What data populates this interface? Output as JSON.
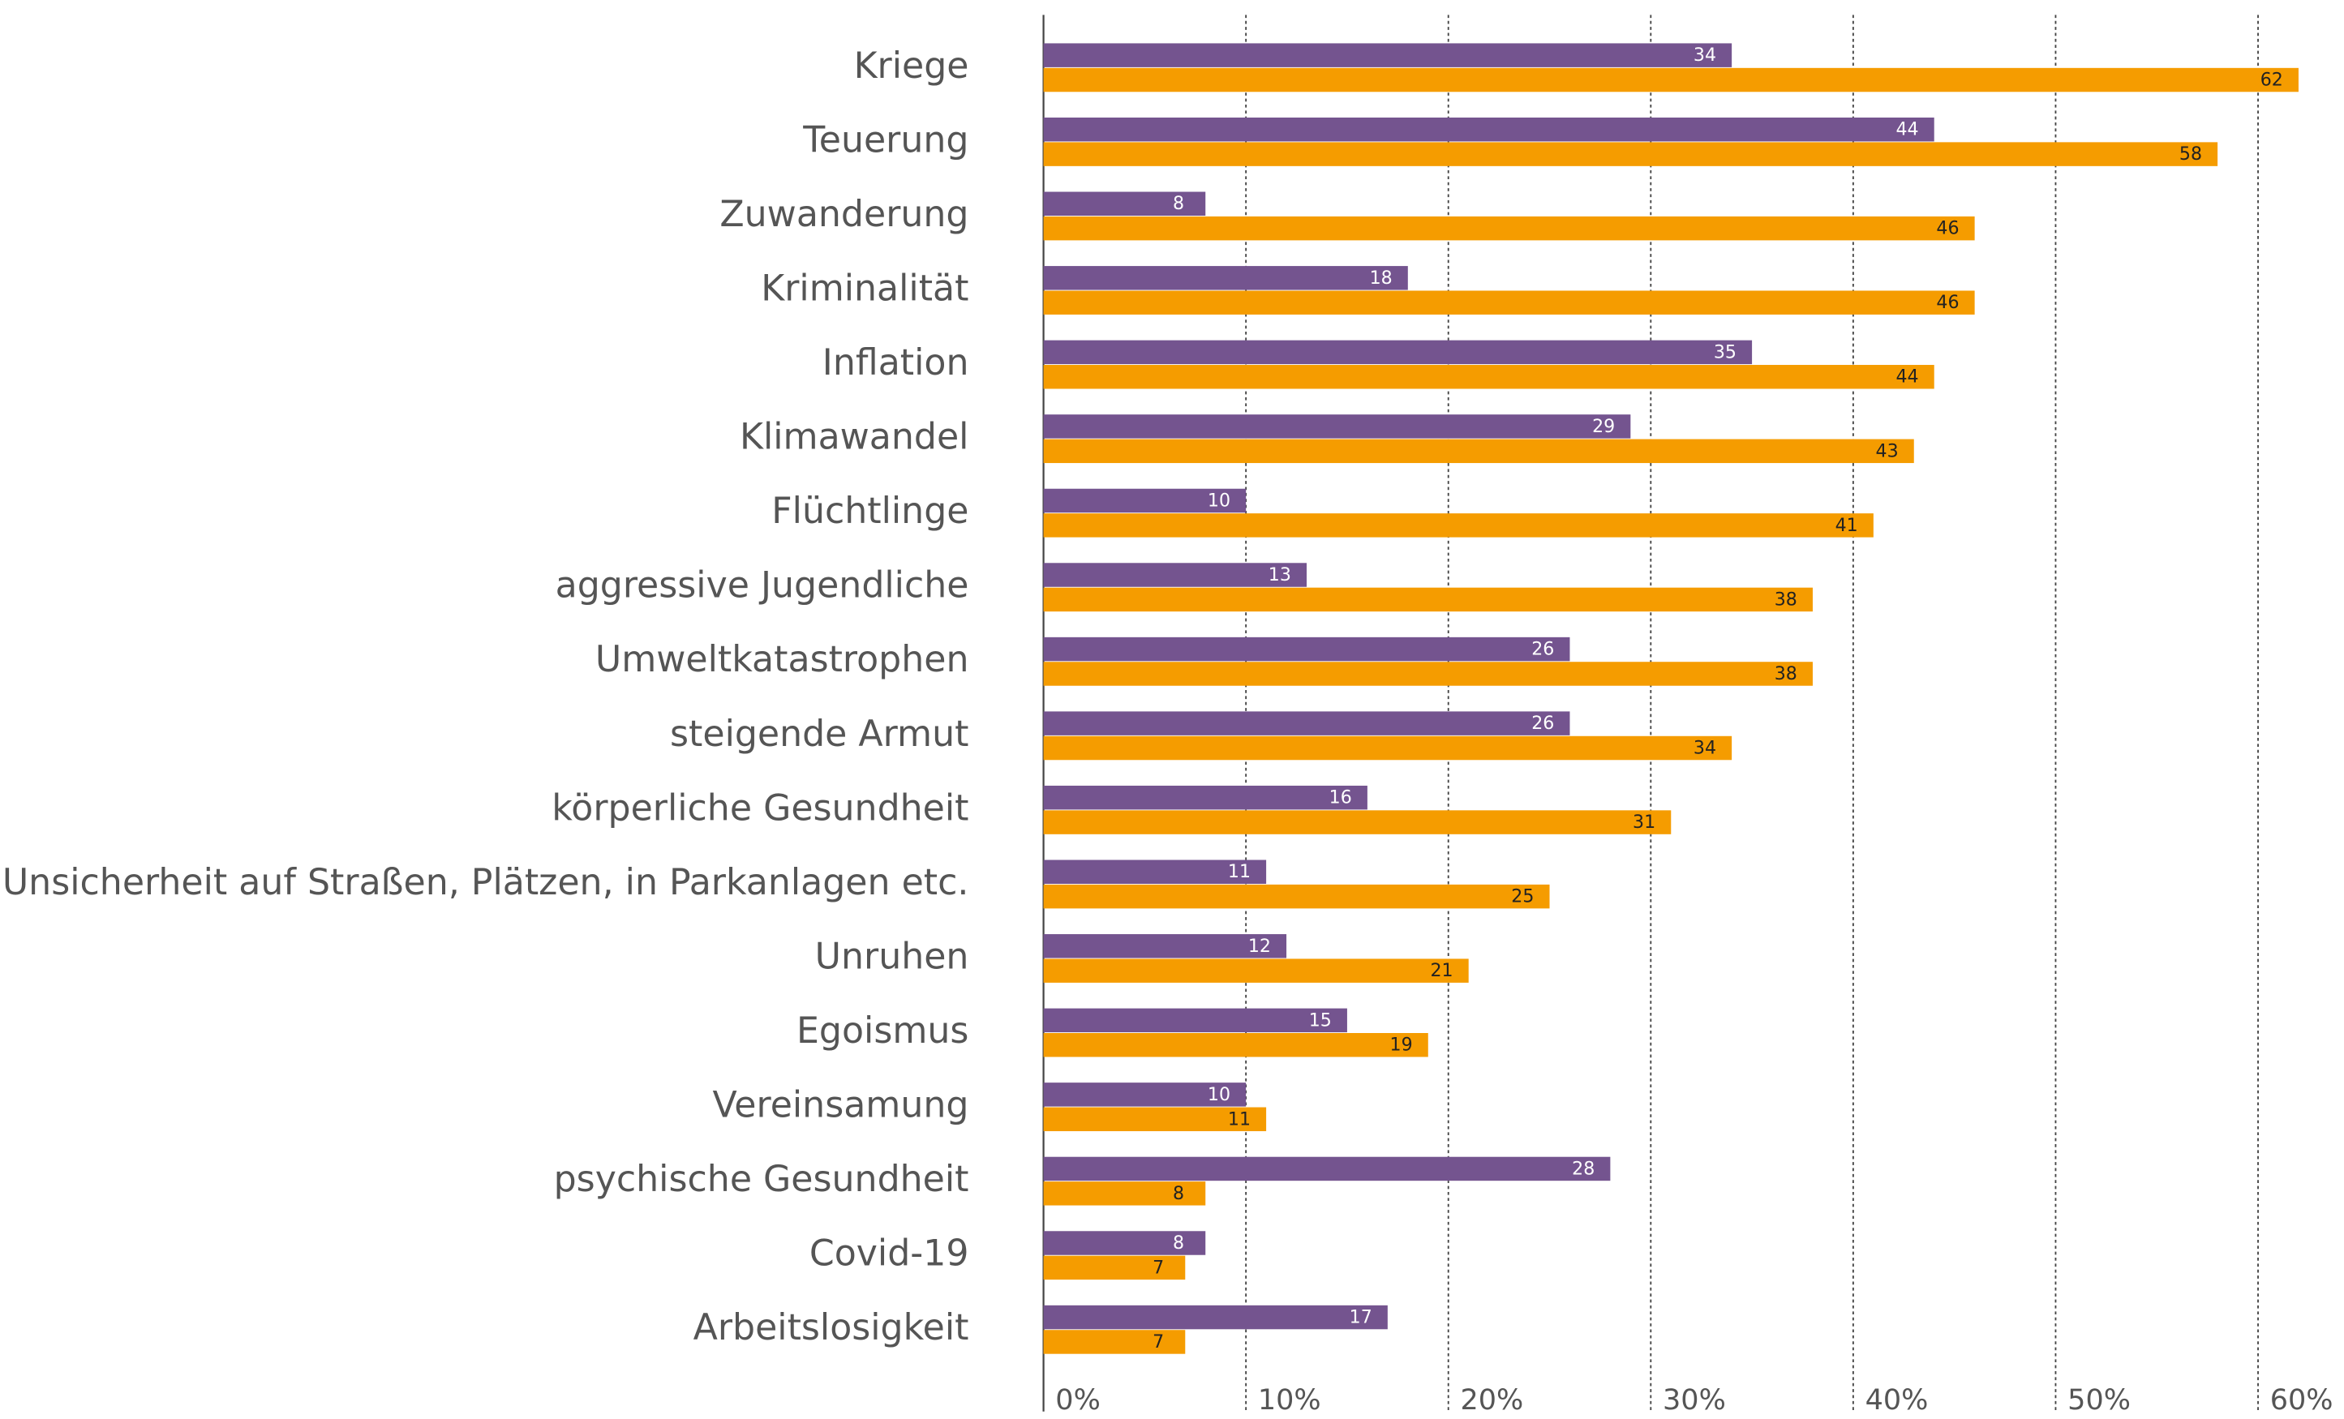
{
  "chart_data": {
    "type": "bar",
    "orientation": "horizontal",
    "categories": [
      "Kriege",
      "Teuerung",
      "Zuwanderung",
      "Kriminalität",
      "Inflation",
      "Klimawandel",
      "Flüchtlinge",
      "aggressive Jugendliche",
      "Umweltkatastrophen",
      "steigende Armut",
      "körperliche Gesundheit",
      "Unsicherheit auf Straßen, Plätzen, in Parkanlagen etc.",
      "Unruhen",
      "Egoismus",
      "Vereinsamung",
      "psychische Gesundheit",
      "Covid-19",
      "Arbeitslosigkeit"
    ],
    "series": [
      {
        "color": "#74548f",
        "values": [
          34,
          44,
          8,
          18,
          35,
          29,
          10,
          13,
          26,
          26,
          16,
          11,
          12,
          15,
          10,
          28,
          8,
          17
        ]
      },
      {
        "color": "#f59c00",
        "values": [
          62,
          58,
          46,
          46,
          44,
          43,
          41,
          38,
          38,
          34,
          31,
          25,
          21,
          19,
          11,
          8,
          7,
          7
        ]
      }
    ],
    "xlim": [
      0,
      62
    ],
    "xticks": [
      {
        "value": 0,
        "label": "0%"
      },
      {
        "value": 10,
        "label": "10%"
      },
      {
        "value": 20,
        "label": "20%"
      },
      {
        "value": 30,
        "label": "30%"
      },
      {
        "value": 40,
        "label": "40%"
      },
      {
        "value": 50,
        "label": "50%"
      },
      {
        "value": 60,
        "label": "60%"
      }
    ],
    "grid": true
  }
}
